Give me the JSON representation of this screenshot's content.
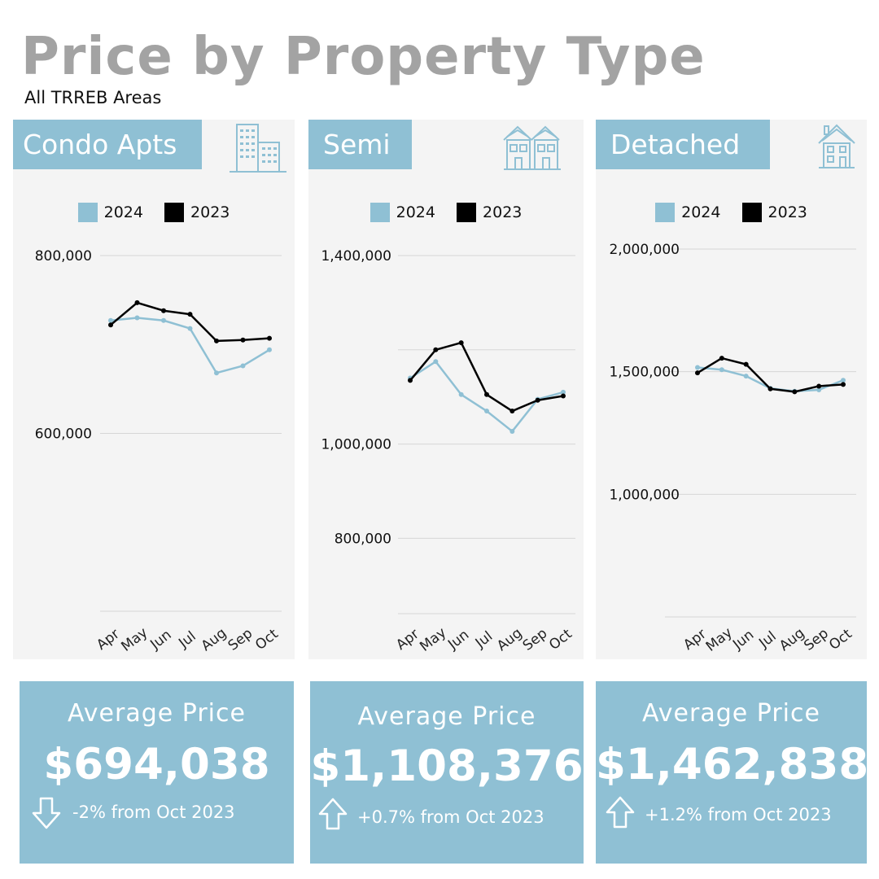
{
  "title": "Price by Property Type",
  "subtitle": "All TRREB Areas",
  "colors": {
    "series_2024": "#8fc0d4",
    "series_2023": "#000000",
    "panel_bg": "#f4f4f4",
    "accent": "#8fc0d4"
  },
  "panels": [
    {
      "name": "Condo Apts",
      "icon": "apartment-building-icon",
      "chart_data": {
        "type": "line",
        "categories": [
          "Apr",
          "May",
          "Jun",
          "Jul",
          "Aug",
          "Sep",
          "Oct"
        ],
        "series": [
          {
            "name": "2024",
            "values": [
              727000,
              730000,
              727000,
              718000,
              668000,
              676000,
              694038
            ]
          },
          {
            "name": "2023",
            "values": [
              722000,
              747000,
              738000,
              734000,
              704000,
              705000,
              707000
            ]
          }
        ],
        "y_ticks": [
          600000,
          800000
        ],
        "y_tick_labels": [
          "600,000",
          "800,000"
        ],
        "ylim": [
          400000,
          800000
        ],
        "legend": "top-center",
        "grid": true
      },
      "stat": {
        "label": "Average Price",
        "value": "$694,038",
        "change": "-2% from Oct 2023",
        "direction": "down-arrow-icon"
      }
    },
    {
      "name": "Semi",
      "icon": "semi-detached-houses-icon",
      "chart_data": {
        "type": "line",
        "categories": [
          "Apr",
          "May",
          "Jun",
          "Jul",
          "Aug",
          "Sep",
          "Oct"
        ],
        "series": [
          {
            "name": "2024",
            "values": [
              1140000,
              1175000,
              1105000,
              1070000,
              1027000,
              1095000,
              1110000
            ]
          },
          {
            "name": "2023",
            "values": [
              1135000,
              1200000,
              1215000,
              1105000,
              1070000,
              1093000,
              1102000
            ]
          }
        ],
        "y_ticks": [
          800000,
          1000000,
          1200000,
          1400000
        ],
        "y_tick_labels": [
          "800,000",
          "1,000,000",
          "",
          "1,400,000"
        ],
        "ylim": [
          640000,
          1400000
        ],
        "legend": "top-center",
        "grid": true
      },
      "stat": {
        "label": "Average Price",
        "value": "$1,108,376",
        "change": "+0.7% from Oct 2023",
        "direction": "up-arrow-icon"
      }
    },
    {
      "name": "Detached",
      "icon": "house-icon",
      "chart_data": {
        "type": "line",
        "categories": [
          "Apr",
          "May",
          "Jun",
          "Jul",
          "Aug",
          "Sep",
          "Oct"
        ],
        "series": [
          {
            "name": "2024",
            "values": [
              1517000,
              1508000,
              1482000,
              1432000,
              1420000,
              1426000,
              1465000
            ]
          },
          {
            "name": "2023",
            "values": [
              1495000,
              1555000,
              1530000,
              1430000,
              1418000,
              1441000,
              1448000
            ]
          }
        ],
        "y_ticks": [
          1000000,
          1500000,
          2000000
        ],
        "y_tick_labels": [
          "1,000,000",
          "1,500,000",
          "2,000,000"
        ],
        "ylim": [
          500000,
          2000000
        ],
        "legend": "top-center",
        "grid": true
      },
      "stat": {
        "label": "Average Price",
        "value": "$1,462,838",
        "change": "+1.2% from Oct 2023",
        "direction": "up-arrow-icon"
      }
    }
  ]
}
